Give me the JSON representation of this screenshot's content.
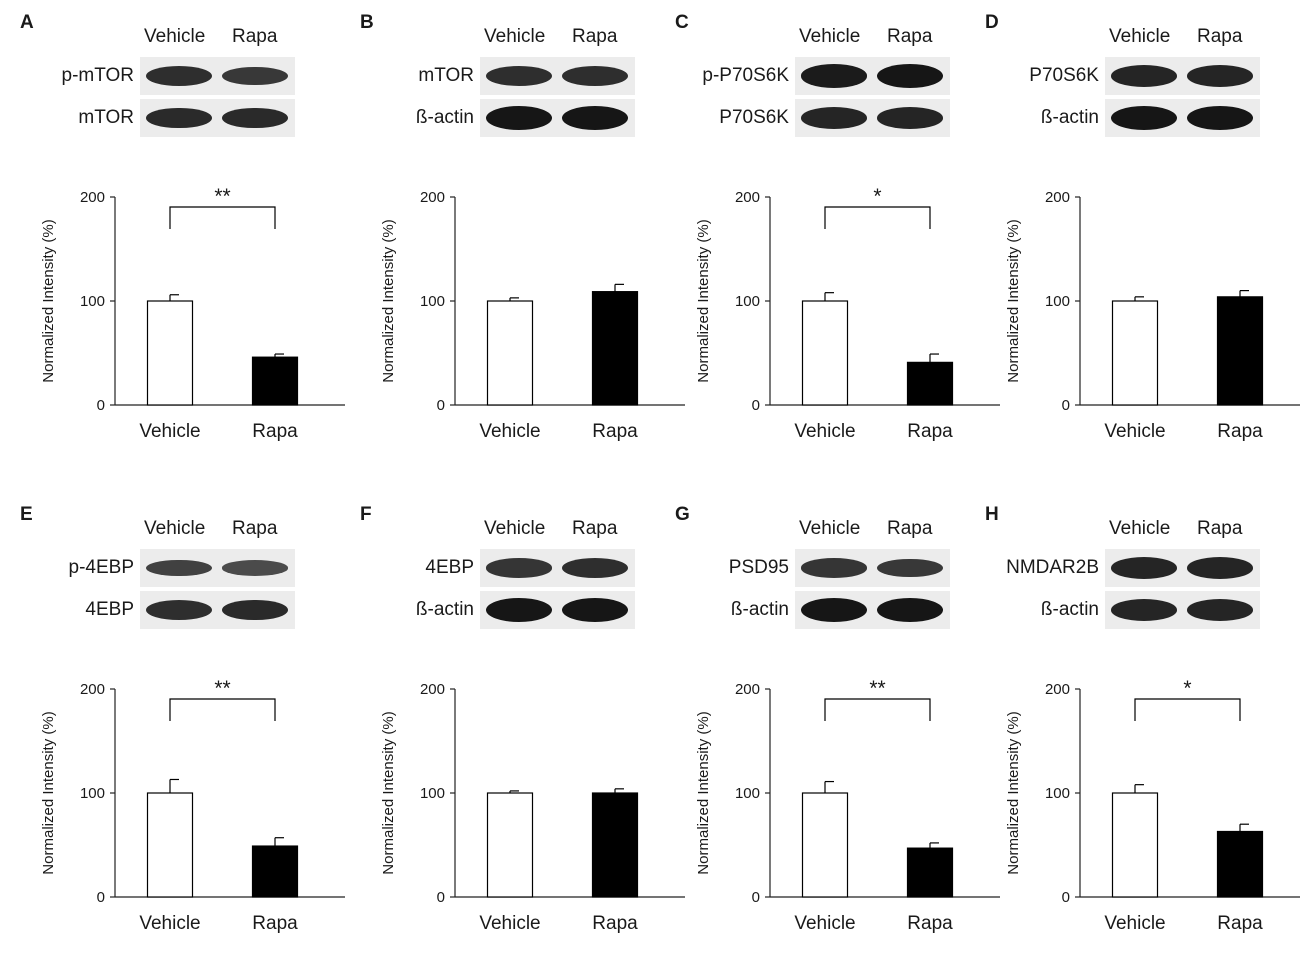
{
  "figure": {
    "colors": {
      "vehicle_fill": "#ffffff",
      "rapa_fill": "#000000",
      "axis": "#222222"
    }
  },
  "panels": [
    {
      "letter": "A",
      "blot": {
        "columns": [
          "Vehicle",
          "Rapa"
        ],
        "rows": [
          {
            "label": "p-mTOR",
            "bands": [
              0.75,
              0.65
            ]
          },
          {
            "label": "mTOR",
            "bands": [
              0.8,
              0.8
            ]
          }
        ]
      },
      "significance": "**"
    },
    {
      "letter": "B",
      "blot": {
        "columns": [
          "Vehicle",
          "Rapa"
        ],
        "rows": [
          {
            "label": "mTOR",
            "bands": [
              0.75,
              0.75
            ]
          },
          {
            "label": "ß-actin",
            "bands": [
              1.0,
              1.0
            ]
          }
        ]
      },
      "significance": ""
    },
    {
      "letter": "C",
      "blot": {
        "columns": [
          "Vehicle",
          "Rapa"
        ],
        "rows": [
          {
            "label": "p-P70S6K",
            "bands": [
              0.95,
              1.0
            ]
          },
          {
            "label": "P70S6K",
            "bands": [
              0.85,
              0.85
            ]
          }
        ]
      },
      "significance": "*"
    },
    {
      "letter": "D",
      "blot": {
        "columns": [
          "Vehicle",
          "Rapa"
        ],
        "rows": [
          {
            "label": "P70S6K",
            "bands": [
              0.85,
              0.85
            ]
          },
          {
            "label": "ß-actin",
            "bands": [
              1.0,
              1.0
            ]
          }
        ]
      },
      "significance": ""
    },
    {
      "letter": "E",
      "blot": {
        "columns": [
          "Vehicle",
          "Rapa"
        ],
        "rows": [
          {
            "label": "p-4EBP",
            "bands": [
              0.55,
              0.45
            ]
          },
          {
            "label": "4EBP",
            "bands": [
              0.75,
              0.8
            ]
          }
        ]
      },
      "significance": "**"
    },
    {
      "letter": "F",
      "blot": {
        "columns": [
          "Vehicle",
          "Rapa"
        ],
        "rows": [
          {
            "label": "4EBP",
            "bands": [
              0.7,
              0.75
            ]
          },
          {
            "label": "ß-actin",
            "bands": [
              1.0,
              1.0
            ]
          }
        ]
      },
      "significance": ""
    },
    {
      "letter": "G",
      "blot": {
        "columns": [
          "Vehicle",
          "Rapa"
        ],
        "rows": [
          {
            "label": "PSD95",
            "bands": [
              0.7,
              0.65
            ]
          },
          {
            "label": "ß-actin",
            "bands": [
              1.0,
              1.0
            ]
          }
        ]
      },
      "significance": "**"
    },
    {
      "letter": "H",
      "blot": {
        "columns": [
          "Vehicle",
          "Rapa"
        ],
        "rows": [
          {
            "label": "NMDAR2B",
            "bands": [
              0.85,
              0.85
            ]
          },
          {
            "label": "ß-actin",
            "bands": [
              0.85,
              0.85
            ]
          }
        ]
      },
      "significance": "*"
    }
  ],
  "chart_data": [
    {
      "panel": "A",
      "type": "bar",
      "categories": [
        "Vehicle",
        "Rapa"
      ],
      "values": [
        100,
        46
      ],
      "errors": [
        6,
        3
      ],
      "ylabel": "Normalized Intensity (%)",
      "ylim": [
        0,
        200
      ],
      "yticks": [
        0,
        100,
        200
      ],
      "significance": "**"
    },
    {
      "panel": "B",
      "type": "bar",
      "categories": [
        "Vehicle",
        "Rapa"
      ],
      "values": [
        100,
        109
      ],
      "errors": [
        3,
        7
      ],
      "ylabel": "Normalized Intensity (%)",
      "ylim": [
        0,
        200
      ],
      "yticks": [
        0,
        100,
        200
      ],
      "significance": ""
    },
    {
      "panel": "C",
      "type": "bar",
      "categories": [
        "Vehicle",
        "Rapa"
      ],
      "values": [
        100,
        41
      ],
      "errors": [
        8,
        8
      ],
      "ylabel": "Normalized Intensity (%)",
      "ylim": [
        0,
        200
      ],
      "yticks": [
        0,
        100,
        200
      ],
      "significance": "*"
    },
    {
      "panel": "D",
      "type": "bar",
      "categories": [
        "Vehicle",
        "Rapa"
      ],
      "values": [
        100,
        104
      ],
      "errors": [
        4,
        6
      ],
      "ylabel": "Normalized Intensity (%)",
      "ylim": [
        0,
        200
      ],
      "yticks": [
        0,
        100,
        200
      ],
      "significance": ""
    },
    {
      "panel": "E",
      "type": "bar",
      "categories": [
        "Vehicle",
        "Rapa"
      ],
      "values": [
        100,
        49
      ],
      "errors": [
        13,
        8
      ],
      "ylabel": "Normalized Intensity (%)",
      "ylim": [
        0,
        200
      ],
      "yticks": [
        0,
        100,
        200
      ],
      "significance": "**"
    },
    {
      "panel": "F",
      "type": "bar",
      "categories": [
        "Vehicle",
        "Rapa"
      ],
      "values": [
        100,
        100
      ],
      "errors": [
        2,
        4
      ],
      "ylabel": "Normalized Intensity (%)",
      "ylim": [
        0,
        200
      ],
      "yticks": [
        0,
        100,
        200
      ],
      "significance": ""
    },
    {
      "panel": "G",
      "type": "bar",
      "categories": [
        "Vehicle",
        "Rapa"
      ],
      "values": [
        100,
        47
      ],
      "errors": [
        11,
        5
      ],
      "ylabel": "Normalized Intensity (%)",
      "ylim": [
        0,
        200
      ],
      "yticks": [
        0,
        100,
        200
      ],
      "significance": "**"
    },
    {
      "panel": "H",
      "type": "bar",
      "categories": [
        "Vehicle",
        "Rapa"
      ],
      "values": [
        100,
        63
      ],
      "errors": [
        8,
        7
      ],
      "ylabel": "Normalized Intensity (%)",
      "ylim": [
        0,
        200
      ],
      "yticks": [
        0,
        100,
        200
      ],
      "significance": "*"
    }
  ]
}
